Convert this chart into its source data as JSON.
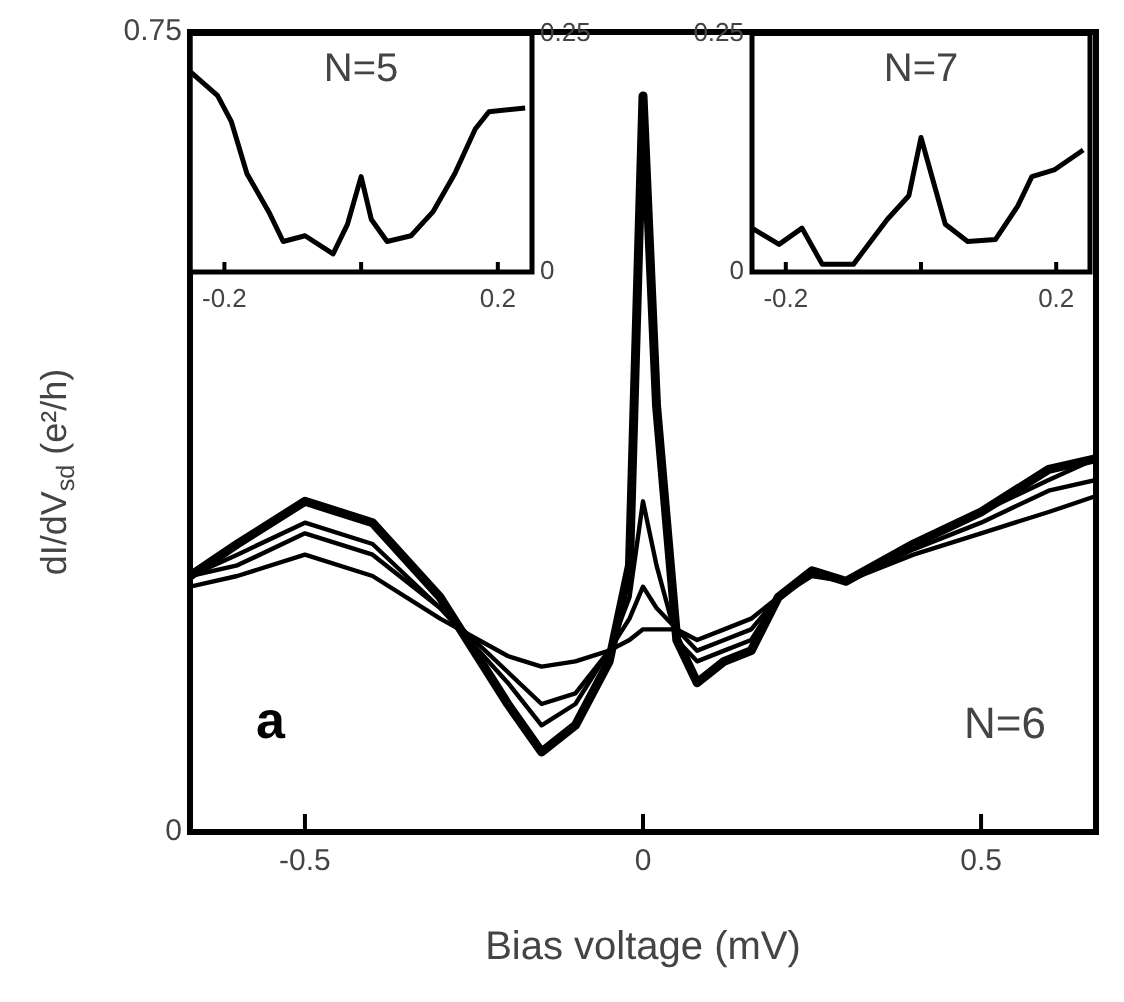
{
  "chart_data": [
    {
      "type": "line",
      "xlabel": "Bias voltage (mV)",
      "ylabel": "dI/dV$_{sd}$ (e²/h)",
      "annotations": [
        "a",
        "N=6"
      ],
      "x": [
        -0.67,
        -0.6,
        -0.5,
        -0.4,
        -0.3,
        -0.2,
        -0.15,
        -0.1,
        -0.05,
        -0.02,
        0,
        0.02,
        0.05,
        0.08,
        0.12,
        0.16,
        0.2,
        0.25,
        0.3,
        0.4,
        0.5,
        0.6,
        0.67
      ],
      "series": [
        {
          "color": "#000000",
          "values": [
            0.24,
            0.27,
            0.31,
            0.29,
            0.22,
            0.12,
            0.075,
            0.1,
            0.16,
            0.25,
            0.69,
            0.4,
            0.18,
            0.14,
            0.16,
            0.17,
            0.22,
            0.245,
            0.235,
            0.27,
            0.3,
            0.34,
            0.35
          ]
        },
        {
          "color": "#000000",
          "values": [
            0.24,
            0.26,
            0.29,
            0.27,
            0.21,
            0.14,
            0.1,
            0.12,
            0.17,
            0.22,
            0.31,
            0.25,
            0.18,
            0.16,
            0.17,
            0.18,
            0.22,
            0.245,
            0.235,
            0.27,
            0.3,
            0.33,
            0.35
          ]
        },
        {
          "color": "#000000",
          "values": [
            0.24,
            0.25,
            0.28,
            0.26,
            0.21,
            0.15,
            0.12,
            0.13,
            0.17,
            0.2,
            0.23,
            0.21,
            0.19,
            0.17,
            0.18,
            0.19,
            0.22,
            0.245,
            0.235,
            0.265,
            0.29,
            0.32,
            0.33
          ]
        },
        {
          "color": "#000000",
          "values": [
            0.23,
            0.24,
            0.26,
            0.24,
            0.2,
            0.165,
            0.155,
            0.16,
            0.17,
            0.18,
            0.19,
            0.19,
            0.19,
            0.18,
            0.19,
            0.2,
            0.22,
            0.24,
            0.235,
            0.26,
            0.28,
            0.3,
            0.315
          ]
        }
      ],
      "xlim": [
        -0.67,
        0.67
      ],
      "ylim": [
        0,
        0.75
      ],
      "xticks": [
        -0.5,
        0,
        0.5
      ],
      "yticks": [
        0,
        0.75
      ],
      "grid": false,
      "legend": false
    },
    {
      "type": "line",
      "title": "N=5",
      "x": [
        -0.25,
        -0.21,
        -0.19,
        -0.167,
        -0.135,
        -0.114,
        -0.082,
        -0.041,
        -0.02,
        0,
        0.015,
        0.038,
        0.073,
        0.105,
        0.137,
        0.167,
        0.187,
        0.24
      ],
      "values": [
        0.21,
        0.185,
        0.158,
        0.103,
        0.063,
        0.032,
        0.038,
        0.019,
        0.05,
        0.1,
        0.055,
        0.032,
        0.038,
        0.063,
        0.103,
        0.15,
        0.168,
        0.172
      ],
      "color": "#000000",
      "xlim": [
        -0.25,
        0.25
      ],
      "ylim": [
        0,
        0.25
      ],
      "xticks": [
        -0.2,
        {
          "value": 0,
          "label": null
        },
        0.2
      ],
      "yticks": [
        0,
        0.25
      ],
      "grid": false,
      "legend": false
    },
    {
      "type": "line",
      "title": "N=7",
      "x": [
        -0.25,
        -0.21,
        -0.176,
        -0.146,
        -0.1,
        -0.05,
        -0.018,
        0,
        0.015,
        0.036,
        0.069,
        0.11,
        0.143,
        0.164,
        0.197,
        0.24
      ],
      "values": [
        0.046,
        0.029,
        0.046,
        0.008,
        0.008,
        0.055,
        0.08,
        0.141,
        0.103,
        0.05,
        0.032,
        0.034,
        0.069,
        0.1,
        0.107,
        0.128
      ],
      "color": "#000000",
      "xlim": [
        -0.25,
        0.25
      ],
      "ylim": [
        0,
        0.25
      ],
      "xticks": [
        -0.2,
        {
          "value": 0,
          "label": null
        },
        0.2
      ],
      "yticks": [
        0,
        0.25
      ],
      "grid": false,
      "legend": false
    }
  ]
}
